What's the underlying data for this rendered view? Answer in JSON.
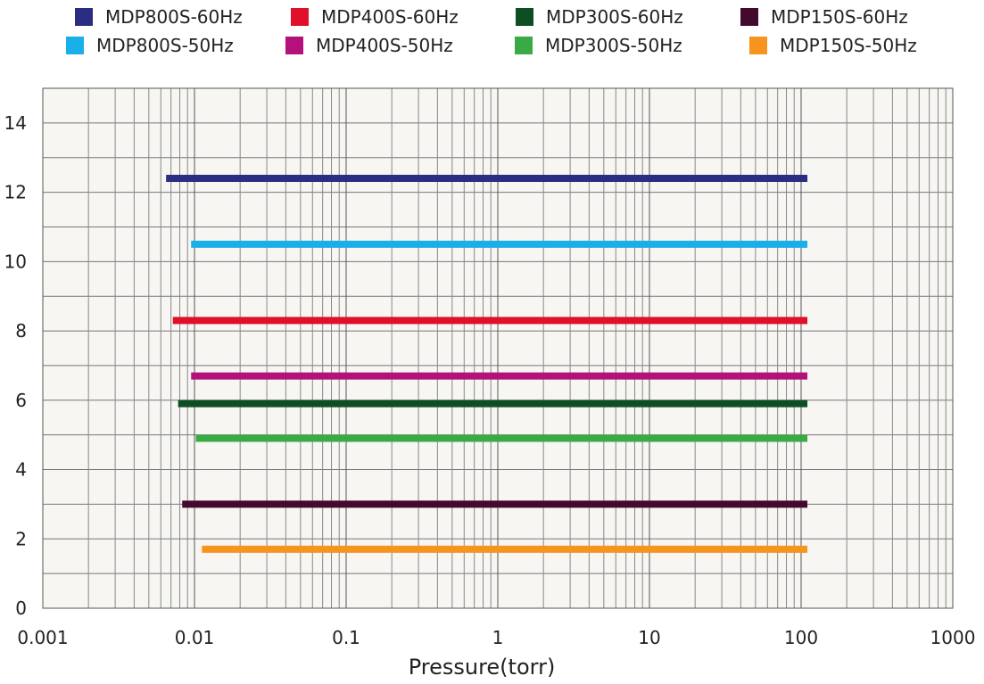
{
  "chart_data": {
    "type": "line",
    "xlabel": "Pressure(torr)",
    "ylabel": "",
    "x_scale": "log",
    "xlim": [
      0.001,
      1000
    ],
    "ylim": [
      0,
      15
    ],
    "grid": true,
    "legend_position": "top",
    "x_ticks": [
      "0.001",
      "0.01",
      "0.1",
      "1",
      "10",
      "100",
      "1000"
    ],
    "y_ticks": [
      "0",
      "2",
      "4",
      "6",
      "8",
      "10",
      "12",
      "14"
    ],
    "series": [
      {
        "name": "MDP800S-60Hz",
        "color": "#2b2d83",
        "x": [
          0.0065,
          110
        ],
        "y": [
          12.4,
          12.4
        ]
      },
      {
        "name": "MDP400S-60Hz",
        "color": "#e0102a",
        "x": [
          0.0072,
          110
        ],
        "y": [
          8.3,
          8.3
        ]
      },
      {
        "name": "MDP300S-60Hz",
        "color": "#0d4f22",
        "x": [
          0.0078,
          110
        ],
        "y": [
          5.9,
          5.9
        ]
      },
      {
        "name": "MDP150S-60Hz",
        "color": "#440a2e",
        "x": [
          0.0083,
          110
        ],
        "y": [
          3.0,
          3.0
        ]
      },
      {
        "name": "MDP800S-50Hz",
        "color": "#19b0ea",
        "x": [
          0.0095,
          110
        ],
        "y": [
          10.5,
          10.5
        ]
      },
      {
        "name": "MDP400S-50Hz",
        "color": "#b5117c",
        "x": [
          0.0095,
          110
        ],
        "y": [
          6.7,
          6.7
        ]
      },
      {
        "name": "MDP300S-50Hz",
        "color": "#3aaa45",
        "x": [
          0.0102,
          110
        ],
        "y": [
          4.9,
          4.9
        ]
      },
      {
        "name": "MDP150S-50Hz",
        "color": "#f7941d",
        "x": [
          0.0112,
          110
        ],
        "y": [
          1.7,
          1.7
        ]
      }
    ]
  }
}
